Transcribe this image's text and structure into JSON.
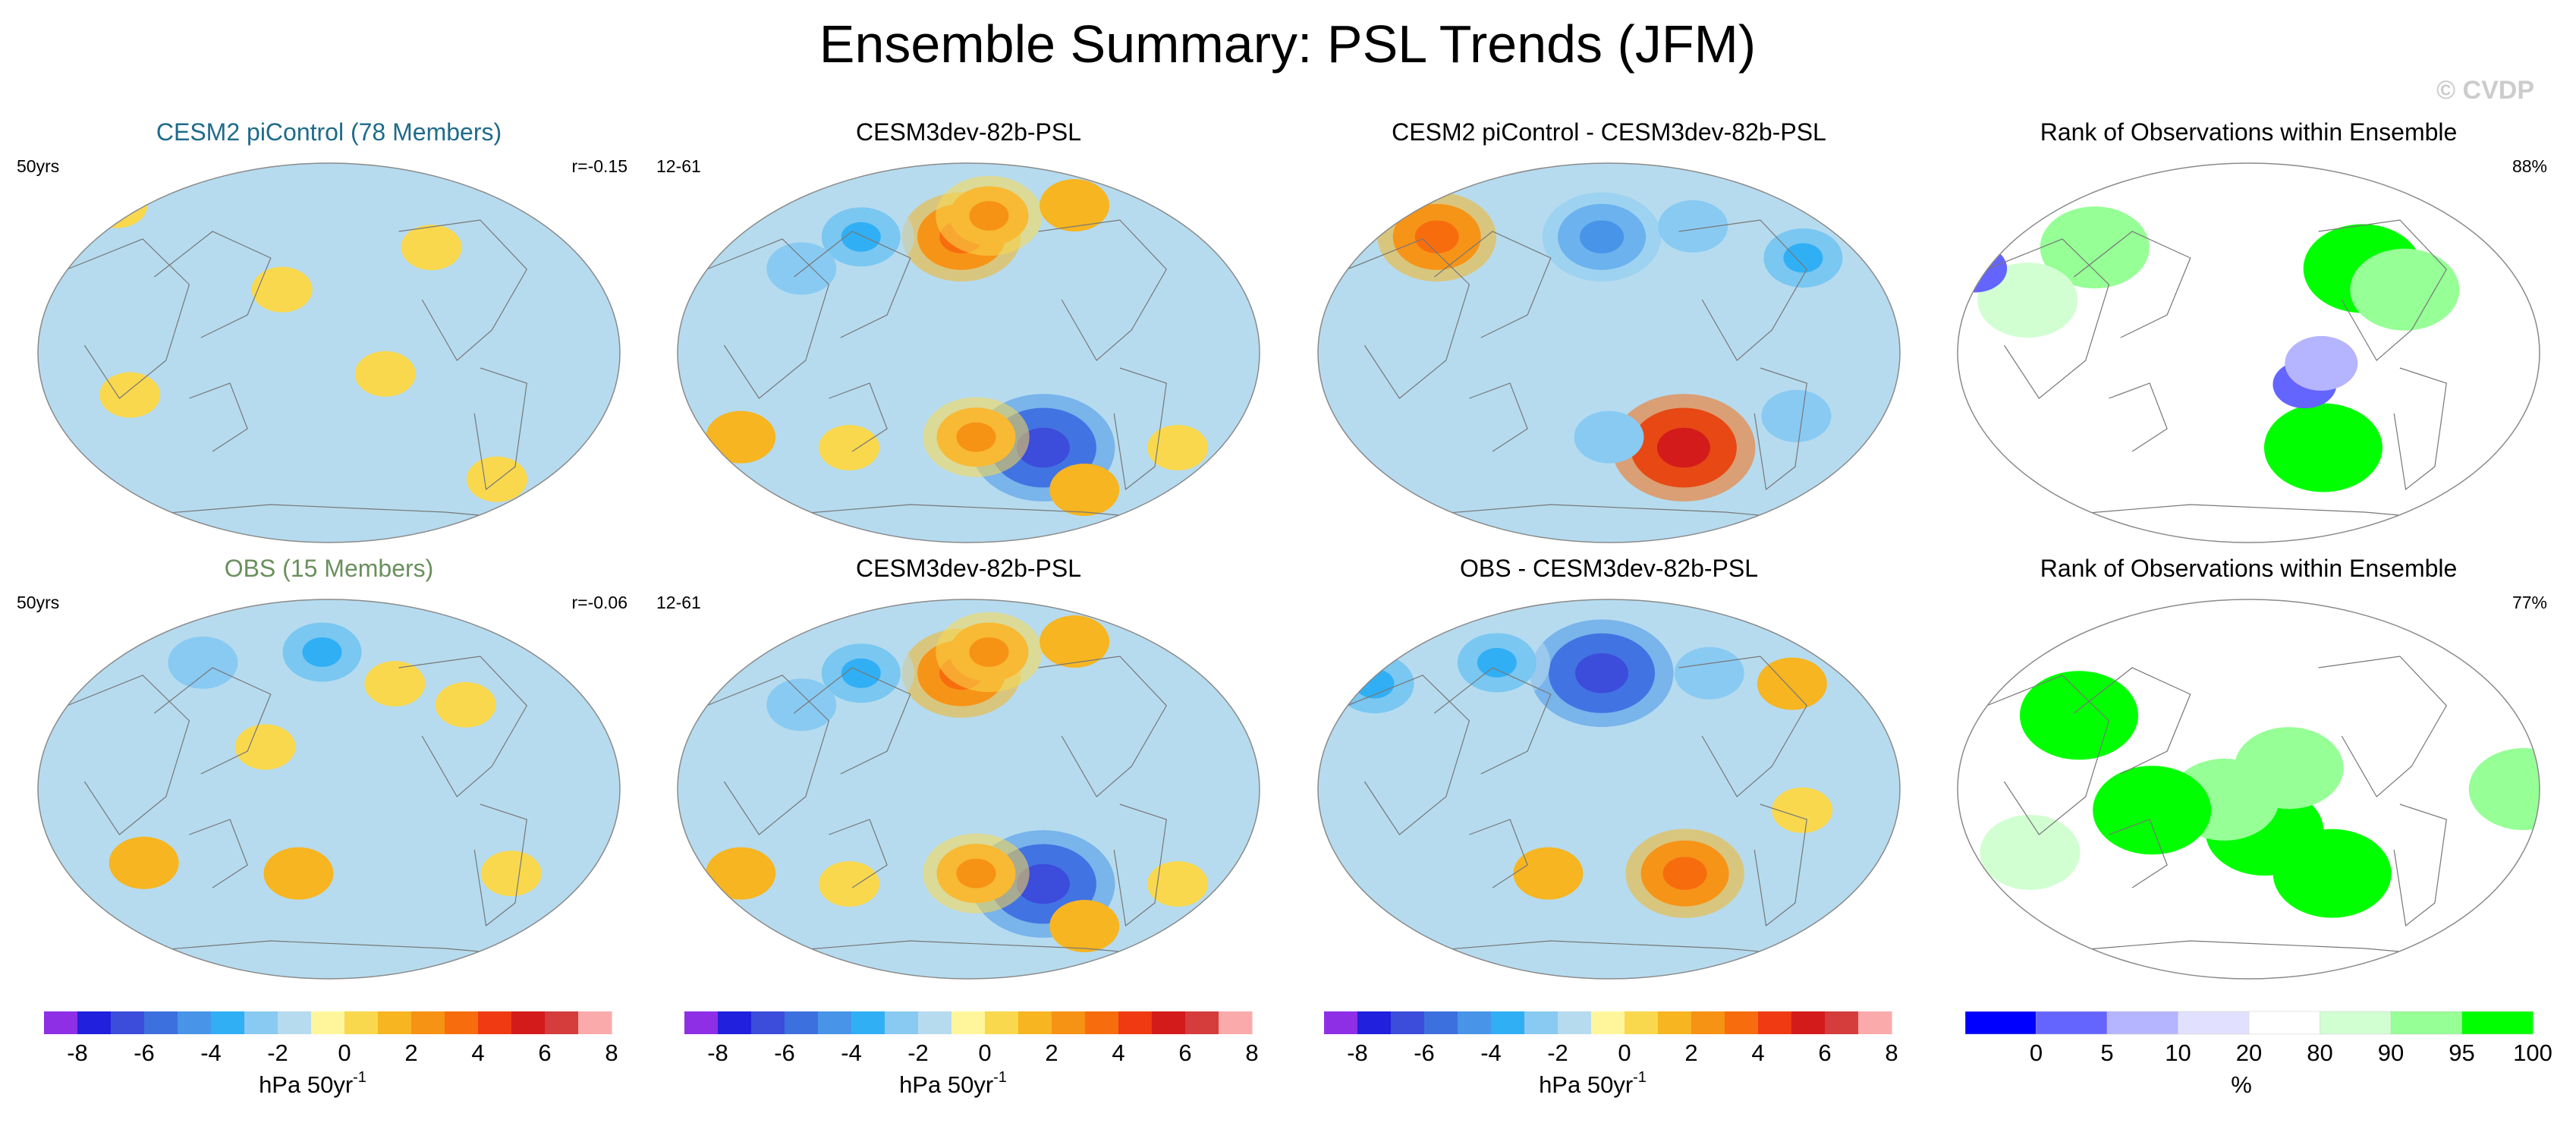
{
  "page": {
    "title": "Ensemble Summary: PSL Trends (JFM)",
    "watermark": "© CVDP"
  },
  "colors": {
    "ocean_base": "#b6dbef",
    "land_line": "#777777",
    "border": "#8a8a8a",
    "title_row1": "#1f6b8a",
    "title_row2": "#6a8f5e",
    "trend_palette": [
      "#8e2fe6",
      "#2020dd",
      "#3c4cdb",
      "#3d70df",
      "#4794e8",
      "#31aff4",
      "#89caf2",
      "#b6dbef",
      "#fff69c",
      "#f9d84e",
      "#f6b521",
      "#f69214",
      "#f76d0e",
      "#ef3a12",
      "#d31b1b",
      "#d53c3c",
      "#faaaaa"
    ],
    "rank_palette": [
      "#0000ff",
      "#6464ff",
      "#b4b4ff",
      "#e1e1ff",
      "#ffffff",
      "#d2ffd2",
      "#96ff96",
      "#00ff00"
    ]
  },
  "panels": [
    {
      "key": "p1",
      "title": "CESM2 piControl (78 Members)",
      "title_color": "#1f6b8a",
      "left_label": "50yrs",
      "right_label": "r=-0.15",
      "type": "trend"
    },
    {
      "key": "p2",
      "title": "CESM3dev-82b-PSL",
      "title_color": "#000000",
      "left_label": "12-61",
      "right_label": "",
      "type": "trend"
    },
    {
      "key": "p3",
      "title": "CESM2 piControl - CESM3dev-82b-PSL",
      "title_color": "#000000",
      "left_label": "",
      "right_label": "",
      "type": "trend"
    },
    {
      "key": "p4",
      "title": "Rank of Observations within Ensemble",
      "title_color": "#000000",
      "left_label": "",
      "right_label": "88%",
      "type": "rank"
    },
    {
      "key": "p5",
      "title": "OBS (15 Members)",
      "title_color": "#6a8f5e",
      "left_label": "50yrs",
      "right_label": "r=-0.06",
      "type": "trend"
    },
    {
      "key": "p6",
      "title": "CESM3dev-82b-PSL",
      "title_color": "#000000",
      "left_label": "12-61",
      "right_label": "",
      "type": "trend"
    },
    {
      "key": "p7",
      "title": "OBS - CESM3dev-82b-PSL",
      "title_color": "#000000",
      "left_label": "",
      "right_label": "",
      "type": "trend"
    },
    {
      "key": "p8",
      "title": "Rank of Observations within Ensemble",
      "title_color": "#000000",
      "left_label": "",
      "right_label": "77%",
      "type": "rank"
    }
  ],
  "colorbars": [
    {
      "type": "trend",
      "ticks": [
        "-8",
        "-6",
        "-4",
        "-2",
        "0",
        "2",
        "4",
        "6",
        "8"
      ],
      "label_main": "hPa 50yr",
      "label_sup": "-1"
    },
    {
      "type": "trend",
      "ticks": [
        "-8",
        "-6",
        "-4",
        "-2",
        "0",
        "2",
        "4",
        "6",
        "8"
      ],
      "label_main": "hPa 50yr",
      "label_sup": "-1"
    },
    {
      "type": "trend",
      "ticks": [
        "-8",
        "-6",
        "-4",
        "-2",
        "0",
        "2",
        "4",
        "6",
        "8"
      ],
      "label_main": "hPa 50yr",
      "label_sup": "-1"
    },
    {
      "type": "rank",
      "ticks": [
        "0",
        "5",
        "10",
        "20",
        "80",
        "90",
        "95",
        "100"
      ],
      "label_main": "%",
      "label_sup": ""
    }
  ],
  "chart_data": {
    "type": "heatmap",
    "title": "Ensemble Summary: PSL Trends (JFM)",
    "variable": "PSL trend",
    "units": "hPa 50yr-1",
    "trend_levels": [
      -8,
      -7,
      -6,
      -5,
      -4,
      -3,
      -2,
      -1,
      0,
      1,
      2,
      3,
      4,
      5,
      6,
      7,
      8
    ],
    "rank_levels": [
      0,
      5,
      10,
      20,
      80,
      90,
      95,
      100
    ],
    "legend": "below each column",
    "map_projection": "Robinson, Pacific-centred (approximate)",
    "panels": [
      {
        "key": "p1",
        "blobs": [
          {
            "lon": 150,
            "lat": 30,
            "value": 1
          },
          {
            "lon": 215,
            "lat": -10,
            "value": 1
          },
          {
            "lon": 300,
            "lat": -60,
            "value": 1
          },
          {
            "lon": 55,
            "lat": -20,
            "value": 1
          },
          {
            "lon": 250,
            "lat": 50,
            "value": 1
          },
          {
            "lon": 20,
            "lat": 70,
            "value": 1
          },
          {
            "lon": 95,
            "lat": -15,
            "value": -1
          }
        ]
      },
      {
        "key": "p2",
        "blobs": [
          {
            "lon": 175,
            "lat": 55,
            "value": 4
          },
          {
            "lon": 195,
            "lat": 65,
            "value": 3
          },
          {
            "lon": 260,
            "lat": 70,
            "value": 2
          },
          {
            "lon": 105,
            "lat": 55,
            "value": -3
          },
          {
            "lon": 70,
            "lat": 40,
            "value": -2
          },
          {
            "lon": 230,
            "lat": -45,
            "value": -6
          },
          {
            "lon": 185,
            "lat": -40,
            "value": 3
          },
          {
            "lon": 265,
            "lat": -65,
            "value": 2
          },
          {
            "lon": 30,
            "lat": -40,
            "value": 2
          },
          {
            "lon": 100,
            "lat": -45,
            "value": 1
          },
          {
            "lon": 320,
            "lat": -45,
            "value": 1
          }
        ]
      },
      {
        "key": "p3",
        "blobs": [
          {
            "lon": 60,
            "lat": 55,
            "value": 4
          },
          {
            "lon": 175,
            "lat": 55,
            "value": -4
          },
          {
            "lon": 240,
            "lat": 60,
            "value": -2
          },
          {
            "lon": 310,
            "lat": 45,
            "value": -3
          },
          {
            "lon": 230,
            "lat": -45,
            "value": 6
          },
          {
            "lon": 180,
            "lat": -40,
            "value": -2
          },
          {
            "lon": 300,
            "lat": -30,
            "value": -2
          },
          {
            "lon": 110,
            "lat": -30,
            "value": -1
          }
        ]
      },
      {
        "key": "p4",
        "blobs": [
          {
            "lon": 75,
            "lat": 50,
            "value": 7
          },
          {
            "lon": 40,
            "lat": 25,
            "value": 6
          },
          {
            "lon": 255,
            "lat": 40,
            "value": 8
          },
          {
            "lon": 280,
            "lat": 30,
            "value": 7
          },
          {
            "lon": 230,
            "lat": -45,
            "value": 8
          },
          {
            "lon": 215,
            "lat": -15,
            "value": 2
          },
          {
            "lon": 225,
            "lat": -5,
            "value": 3
          },
          {
            "lon": 0,
            "lat": 40,
            "value": 2
          }
        ]
      },
      {
        "key": "p5",
        "blobs": [
          {
            "lon": 175,
            "lat": 65,
            "value": -3
          },
          {
            "lon": 90,
            "lat": 60,
            "value": -2
          },
          {
            "lon": 225,
            "lat": 50,
            "value": 1
          },
          {
            "lon": 140,
            "lat": 20,
            "value": 1
          },
          {
            "lon": 270,
            "lat": 40,
            "value": 1
          },
          {
            "lon": 160,
            "lat": -40,
            "value": 2
          },
          {
            "lon": 60,
            "lat": -35,
            "value": 2
          },
          {
            "lon": 300,
            "lat": -40,
            "value": 1
          }
        ]
      },
      {
        "key": "p6",
        "blobs": [
          {
            "lon": 175,
            "lat": 55,
            "value": 4
          },
          {
            "lon": 195,
            "lat": 65,
            "value": 3
          },
          {
            "lon": 260,
            "lat": 70,
            "value": 2
          },
          {
            "lon": 105,
            "lat": 55,
            "value": -3
          },
          {
            "lon": 70,
            "lat": 40,
            "value": -2
          },
          {
            "lon": 230,
            "lat": -45,
            "value": -6
          },
          {
            "lon": 185,
            "lat": -40,
            "value": 3
          },
          {
            "lon": 265,
            "lat": -65,
            "value": 2
          },
          {
            "lon": 30,
            "lat": -40,
            "value": 2
          },
          {
            "lon": 100,
            "lat": -45,
            "value": 1
          },
          {
            "lon": 320,
            "lat": -45,
            "value": 1
          }
        ]
      },
      {
        "key": "p7",
        "blobs": [
          {
            "lon": 175,
            "lat": 55,
            "value": -6
          },
          {
            "lon": 100,
            "lat": 60,
            "value": -3
          },
          {
            "lon": 250,
            "lat": 55,
            "value": -2
          },
          {
            "lon": 305,
            "lat": 50,
            "value": 2
          },
          {
            "lon": 20,
            "lat": 50,
            "value": -3
          },
          {
            "lon": 230,
            "lat": -40,
            "value": 4
          },
          {
            "lon": 140,
            "lat": -40,
            "value": 2
          },
          {
            "lon": 300,
            "lat": -10,
            "value": 1
          }
        ]
      },
      {
        "key": "p8",
        "blobs": [
          {
            "lon": 190,
            "lat": -20,
            "value": 8
          },
          {
            "lon": 235,
            "lat": -40,
            "value": 8
          },
          {
            "lon": 165,
            "lat": -5,
            "value": 7
          },
          {
            "lon": 205,
            "lat": 10,
            "value": 7
          },
          {
            "lon": 70,
            "lat": 35,
            "value": 8
          },
          {
            "lon": 120,
            "lat": -10,
            "value": 8
          },
          {
            "lon": 350,
            "lat": 0,
            "value": 7
          },
          {
            "lon": 40,
            "lat": -30,
            "value": 6
          }
        ]
      }
    ]
  }
}
